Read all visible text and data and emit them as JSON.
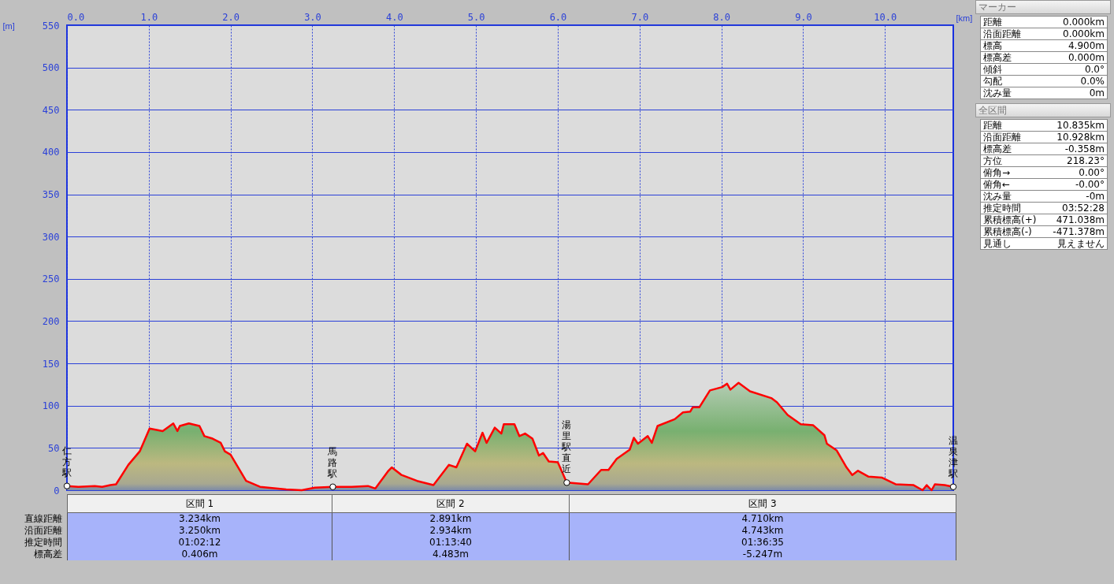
{
  "chart_data": [
    {
      "type": "area",
      "xlabel": "[km]",
      "ylabel": "[m]",
      "x": [
        0,
        0.14,
        0.34,
        0.43,
        0.53,
        0.6,
        0.75,
        0.89,
        1.01,
        1.17,
        1.3,
        1.35,
        1.38,
        1.49,
        1.62,
        1.68,
        1.78,
        1.88,
        1.93,
        2.0,
        2.19,
        2.36,
        2.68,
        2.87,
        3.03,
        3.25,
        3.48,
        3.68,
        3.77,
        3.93,
        3.97,
        4.09,
        4.28,
        4.48,
        4.67,
        4.76,
        4.89,
        4.99,
        5.08,
        5.13,
        5.23,
        5.31,
        5.34,
        5.47,
        5.53,
        5.6,
        5.69,
        5.77,
        5.82,
        5.89,
        6.0,
        6.11,
        6.37,
        6.53,
        6.62,
        6.72,
        6.88,
        6.93,
        6.98,
        7.1,
        7.15,
        7.22,
        7.43,
        7.53,
        7.62,
        7.65,
        7.73,
        7.86,
        8.01,
        8.07,
        8.11,
        8.21,
        8.35,
        8.61,
        8.68,
        8.81,
        8.97,
        9.12,
        9.26,
        9.29,
        9.41,
        9.53,
        9.6,
        9.67,
        9.8,
        9.96,
        10.13,
        10.35,
        10.46,
        10.51,
        10.57,
        10.61,
        10.73,
        10.835
      ],
      "series": [
        {
          "color": "#ff0000",
          "values": [
            5,
            4,
            5,
            4,
            6,
            7,
            30,
            46,
            73,
            70,
            79,
            70,
            76,
            79,
            76,
            64,
            61,
            56,
            46,
            42,
            11,
            4,
            1,
            0,
            3,
            4,
            4,
            5,
            2,
            23,
            27,
            18,
            11,
            6,
            30,
            27,
            55,
            46,
            68,
            56,
            74,
            67,
            78,
            78,
            64,
            67,
            61,
            41,
            44,
            34,
            33,
            9,
            7,
            24,
            24,
            37,
            48,
            62,
            55,
            64,
            56,
            76,
            84,
            92,
            93,
            98,
            98,
            118,
            122,
            126,
            119,
            127,
            117,
            109,
            104,
            89,
            78,
            77,
            65,
            55,
            47,
            27,
            18,
            23,
            16,
            15,
            7,
            6,
            0,
            6,
            0,
            7,
            6,
            4
          ]
        }
      ],
      "xlim": [
        0,
        10.835
      ],
      "ylim": [
        0,
        550
      ],
      "xticks": [
        {
          "value": 0,
          "label": "0.0"
        },
        {
          "value": 1,
          "label": "1.0"
        },
        {
          "value": 2,
          "label": "2.0"
        },
        {
          "value": 3,
          "label": "3.0"
        },
        {
          "value": 4,
          "label": "4.0"
        },
        {
          "value": 5,
          "label": "5.0"
        },
        {
          "value": 6,
          "label": "6.0"
        },
        {
          "value": 7,
          "label": "7.0"
        },
        {
          "value": 8,
          "label": "8.0"
        },
        {
          "value": 9,
          "label": "9.0"
        },
        {
          "value": 10,
          "label": "10.0"
        }
      ],
      "yticks": [
        0,
        50,
        100,
        150,
        200,
        250,
        300,
        350,
        400,
        450,
        500,
        550
      ],
      "grid": true,
      "annotations": [
        {
          "text": "仁方駅",
          "x": 0,
          "y": 5
        },
        {
          "text": "馬路駅",
          "x": 3.25,
          "y": 4
        },
        {
          "text": "湯里駅直近",
          "x": 6.11,
          "y": 9
        },
        {
          "text": "温泉津駅",
          "x": 10.835,
          "y": 4
        }
      ]
    },
    {
      "type": "other",
      "title": "マーカー",
      "annotations": [
        "距離",
        "0.000km",
        "沿面距離",
        "0.000km",
        "標高",
        "4.900m",
        "標高差",
        "0.000m",
        "傾斜",
        "0.0°",
        "勾配",
        "0.0%",
        "沈み量",
        "0m"
      ]
    },
    {
      "type": "other",
      "title": "全区間",
      "annotations": [
        "距離",
        "10.835km",
        "沿面距離",
        "10.928km",
        "標高差",
        "-0.358m",
        "方位",
        "218.23°",
        "俯角→",
        "0.00°",
        "俯角←",
        "-0.00°",
        "沈み量",
        "-0m",
        "推定時間",
        "03:52:28",
        "累積標高(+)",
        "471.038m",
        "累積標高(-)",
        "-471.378m",
        "見通し",
        "見えません"
      ]
    },
    {
      "type": "other",
      "categories": [
        "区間 1",
        "区間 2",
        "区間 3"
      ],
      "annotations": [
        "直線距離",
        "3.234km",
        "2.891km",
        "4.710km",
        "沿面距離",
        "3.250km",
        "2.934km",
        "4.743km",
        "推定時間",
        "01:02:12",
        "01:13:40",
        "01:36:35",
        "標高差",
        "0.406m",
        "4.483m",
        "-5.247m"
      ]
    }
  ]
}
